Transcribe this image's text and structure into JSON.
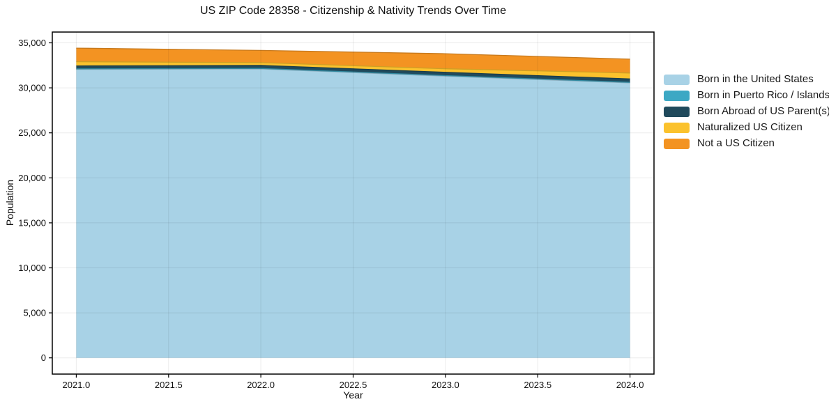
{
  "title": "US ZIP Code 28358 - Citizenship & Nativity Trends Over Time",
  "chart_data": {
    "type": "area",
    "stacked": true,
    "title": "US ZIP Code 28358 - Citizenship & Nativity Trends Over Time",
    "xlabel": "Year",
    "ylabel": "Population",
    "x": [
      2021,
      2022,
      2023,
      2024
    ],
    "series": [
      {
        "name": "Born in the United States",
        "color": "#a8d2e6",
        "values": [
          32050,
          32100,
          31300,
          30550
        ]
      },
      {
        "name": "Born in Puerto Rico / Islands",
        "color": "#3ca8c4",
        "values": [
          60,
          60,
          60,
          60
        ]
      },
      {
        "name": "Born Abroad of US Parent(s)",
        "color": "#204a5c",
        "values": [
          330,
          330,
          370,
          380
        ]
      },
      {
        "name": "Naturalized US Citizen",
        "color": "#fbc22d",
        "values": [
          460,
          310,
          390,
          660
        ]
      },
      {
        "name": "Not a US Citizen",
        "color": "#f39322",
        "values": [
          1510,
          1360,
          1670,
          1540
        ]
      }
    ],
    "xlim": [
      2020.87,
      2024.13
    ],
    "ylim": [
      -1800,
      36200
    ],
    "xticks": {
      "values": [
        2021.0,
        2021.5,
        2022.0,
        2022.5,
        2023.0,
        2023.5,
        2024.0
      ],
      "labels": [
        "2021.0",
        "2021.5",
        "2022.0",
        "2022.5",
        "2023.0",
        "2023.5",
        "2024.0"
      ]
    },
    "yticks": {
      "values": [
        0,
        5000,
        10000,
        15000,
        20000,
        25000,
        30000,
        35000
      ],
      "labels": [
        "0",
        "5,000",
        "10,000",
        "15,000",
        "20,000",
        "25,000",
        "30,000",
        "35,000"
      ]
    },
    "grid": true,
    "legend_position": "right-outside"
  },
  "colors": {
    "background": "#ffffff",
    "spine": "#000000",
    "grid": "rgba(0,0,0,0.08)",
    "tick_text": "#111111"
  }
}
